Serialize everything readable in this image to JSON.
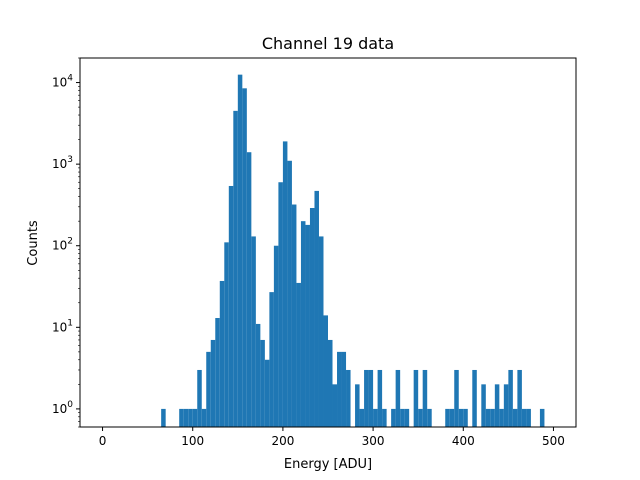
{
  "chart_data": {
    "type": "bar",
    "title": "Channel 19 data",
    "xlabel": "Energy [ADU]",
    "ylabel": "Counts",
    "xlim": [
      -25,
      525
    ],
    "ylim": [
      0.6,
      20000
    ],
    "yscale": "log",
    "grid": false,
    "legend": "none",
    "bar_color": "#1f77b4",
    "x_ticks": [
      0,
      100,
      200,
      300,
      400,
      500
    ],
    "x_tick_labels": [
      "0",
      "100",
      "200",
      "300",
      "400",
      "500"
    ],
    "y_ticks": [
      1,
      10,
      100,
      1000,
      10000
    ],
    "y_tick_labels": [
      {
        "base": "10",
        "exp": "0"
      },
      {
        "base": "10",
        "exp": "1"
      },
      {
        "base": "10",
        "exp": "2"
      },
      {
        "base": "10",
        "exp": "3"
      },
      {
        "base": "10",
        "exp": "4"
      }
    ],
    "bin_width": 5,
    "bins": [
      {
        "x": 65,
        "count": 1
      },
      {
        "x": 85,
        "count": 1
      },
      {
        "x": 90,
        "count": 1
      },
      {
        "x": 95,
        "count": 1
      },
      {
        "x": 100,
        "count": 1
      },
      {
        "x": 105,
        "count": 3
      },
      {
        "x": 110,
        "count": 1
      },
      {
        "x": 115,
        "count": 5
      },
      {
        "x": 120,
        "count": 7
      },
      {
        "x": 125,
        "count": 13
      },
      {
        "x": 130,
        "count": 37
      },
      {
        "x": 135,
        "count": 110
      },
      {
        "x": 140,
        "count": 540
      },
      {
        "x": 145,
        "count": 4500
      },
      {
        "x": 150,
        "count": 12500
      },
      {
        "x": 155,
        "count": 8500
      },
      {
        "x": 160,
        "count": 1400
      },
      {
        "x": 165,
        "count": 130
      },
      {
        "x": 170,
        "count": 11
      },
      {
        "x": 175,
        "count": 7
      },
      {
        "x": 180,
        "count": 4
      },
      {
        "x": 185,
        "count": 27
      },
      {
        "x": 190,
        "count": 100
      },
      {
        "x": 195,
        "count": 600
      },
      {
        "x": 200,
        "count": 1900
      },
      {
        "x": 205,
        "count": 1100
      },
      {
        "x": 210,
        "count": 320
      },
      {
        "x": 215,
        "count": 35
      },
      {
        "x": 220,
        "count": 200
      },
      {
        "x": 225,
        "count": 180
      },
      {
        "x": 230,
        "count": 290
      },
      {
        "x": 235,
        "count": 470
      },
      {
        "x": 240,
        "count": 130
      },
      {
        "x": 245,
        "count": 14
      },
      {
        "x": 250,
        "count": 7
      },
      {
        "x": 255,
        "count": 2
      },
      {
        "x": 260,
        "count": 5
      },
      {
        "x": 265,
        "count": 5
      },
      {
        "x": 270,
        "count": 3
      },
      {
        "x": 280,
        "count": 2
      },
      {
        "x": 285,
        "count": 1
      },
      {
        "x": 290,
        "count": 3
      },
      {
        "x": 295,
        "count": 3
      },
      {
        "x": 300,
        "count": 1
      },
      {
        "x": 305,
        "count": 3
      },
      {
        "x": 310,
        "count": 1
      },
      {
        "x": 320,
        "count": 1
      },
      {
        "x": 325,
        "count": 3
      },
      {
        "x": 330,
        "count": 1
      },
      {
        "x": 335,
        "count": 1
      },
      {
        "x": 345,
        "count": 3
      },
      {
        "x": 350,
        "count": 1
      },
      {
        "x": 355,
        "count": 3
      },
      {
        "x": 360,
        "count": 1
      },
      {
        "x": 380,
        "count": 1
      },
      {
        "x": 385,
        "count": 1
      },
      {
        "x": 390,
        "count": 3
      },
      {
        "x": 395,
        "count": 1
      },
      {
        "x": 400,
        "count": 1
      },
      {
        "x": 410,
        "count": 3
      },
      {
        "x": 420,
        "count": 2
      },
      {
        "x": 425,
        "count": 1
      },
      {
        "x": 430,
        "count": 1
      },
      {
        "x": 435,
        "count": 2
      },
      {
        "x": 440,
        "count": 1
      },
      {
        "x": 445,
        "count": 2
      },
      {
        "x": 450,
        "count": 3
      },
      {
        "x": 455,
        "count": 1
      },
      {
        "x": 460,
        "count": 3
      },
      {
        "x": 465,
        "count": 1
      },
      {
        "x": 470,
        "count": 1
      },
      {
        "x": 485,
        "count": 1
      }
    ]
  }
}
